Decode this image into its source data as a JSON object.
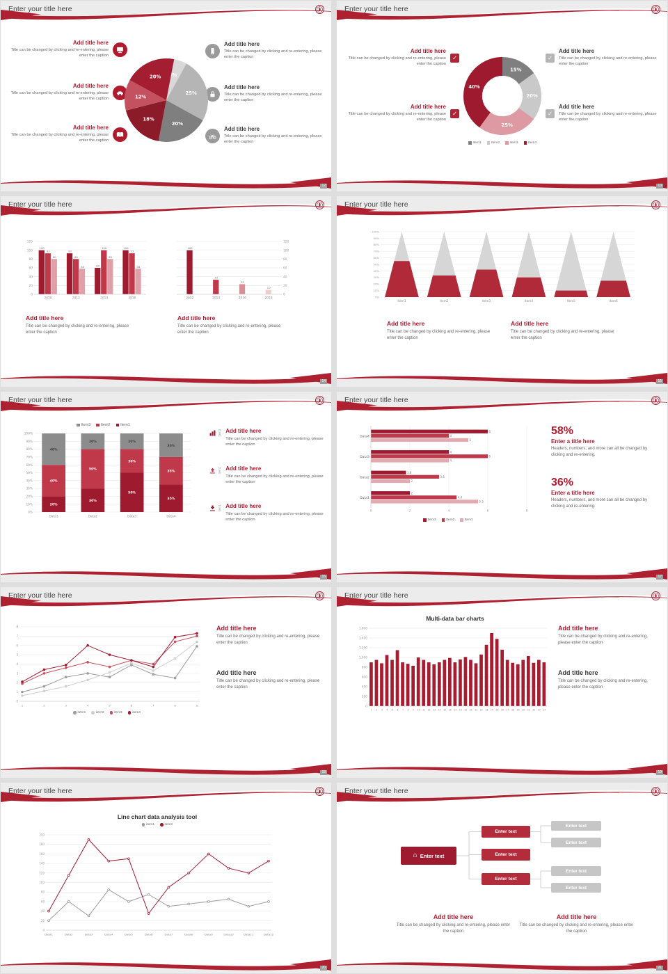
{
  "common": {
    "slide_title": "Enter your title here",
    "add_title": "Add title here",
    "caption": "Title can be changed by clicking and re-entering, please enter the caption",
    "enter_text": "Enter text",
    "brand_red": "#9e1b2f"
  },
  "slides": [
    {
      "page": "12",
      "chart": {
        "type": "pie",
        "slices": [
          {
            "label": "8%",
            "value": 8,
            "color": "#d9d9d9"
          },
          {
            "label": "25%",
            "value": 25,
            "color": "#b5b5b5"
          },
          {
            "label": "20%",
            "value": 20,
            "color": "#7f7f7f"
          },
          {
            "label": "18%",
            "value": 18,
            "color": "#8c1b29"
          },
          {
            "label": "12%",
            "value": 12,
            "color": "#c4515f"
          },
          {
            "label": "20%",
            "value": 20,
            "color": "#a41e32"
          }
        ]
      }
    },
    {
      "page": "13",
      "chart": {
        "type": "pie",
        "inner": true,
        "slices": [
          {
            "label": "15%",
            "value": 15,
            "color": "#7f7f7f"
          },
          {
            "label": "20%",
            "value": 20,
            "color": "#c9c9c9"
          },
          {
            "label": "25%",
            "value": 25,
            "color": "#dd9aa3"
          },
          {
            "label": "40%",
            "value": 40,
            "color": "#9e1b2f"
          }
        ]
      },
      "legend": [
        {
          "label": "Item1",
          "color": "#7f7f7f"
        },
        {
          "label": "Item2",
          "color": "#c9c9c9"
        },
        {
          "label": "Item3",
          "color": "#dd9aa3"
        },
        {
          "label": "Item4",
          "color": "#9e1b2f"
        }
      ]
    },
    {
      "page": "14",
      "chartL": {
        "type": "vbars",
        "axis": "left",
        "ymax": 120,
        "showValues": true,
        "yticks": [
          {
            "v": 0,
            "l": "0"
          },
          {
            "v": 20,
            "l": "20"
          },
          {
            "v": 40,
            "l": "40"
          },
          {
            "v": 60,
            "l": "60"
          },
          {
            "v": 80,
            "l": "80"
          },
          {
            "v": 100,
            "l": "100"
          },
          {
            "v": 120,
            "l": "120"
          }
        ],
        "categories": [
          "2010",
          "2012",
          "2014",
          "2016"
        ],
        "series": [
          {
            "name": "s1",
            "color": "#9e1b2f",
            "values": [
              100,
              93,
              60,
              100
            ]
          },
          {
            "name": "s2",
            "color": "#c0394b",
            "values": [
              93,
              80,
              100,
              93
            ]
          },
          {
            "name": "s3",
            "color": "#dfa0a8",
            "values": [
              80,
              58,
              80,
              58
            ]
          }
        ]
      },
      "chartR": {
        "type": "vbars",
        "axis": "right",
        "ymax": 120,
        "showValues": true,
        "yticks": [
          {
            "v": 0,
            "l": "0"
          },
          {
            "v": 20,
            "l": "20"
          },
          {
            "v": 40,
            "l": "40"
          },
          {
            "v": 60,
            "l": "60"
          },
          {
            "v": 80,
            "l": "80"
          },
          {
            "v": 100,
            "l": "100"
          },
          {
            "v": 120,
            "l": "120"
          }
        ],
        "categories": [
          "2012",
          "2014",
          "2016",
          "2018"
        ],
        "series": [
          {
            "name": "s1",
            "color": "#9e1b2f",
            "colors": [
              "#9e1b2f",
              "#c0394b",
              "#d98f98",
              "#eccdd0"
            ],
            "values": [
              100,
              33,
              23,
              10
            ]
          }
        ]
      }
    },
    {
      "page": "15",
      "chart": {
        "type": "cones",
        "red": "#b02a3a",
        "yticks": [
          {
            "v": 0,
            "l": "0%"
          },
          {
            "v": 10,
            "l": "10%"
          },
          {
            "v": 20,
            "l": "20%"
          },
          {
            "v": 30,
            "l": "30%"
          },
          {
            "v": 40,
            "l": "40%"
          },
          {
            "v": 50,
            "l": "50%"
          },
          {
            "v": 60,
            "l": "60%"
          },
          {
            "v": 70,
            "l": "70%"
          },
          {
            "v": 80,
            "l": "80%"
          },
          {
            "v": 90,
            "l": "90%"
          },
          {
            "v": 100,
            "l": "100%"
          }
        ],
        "items": [
          {
            "label": "Item1",
            "value": 55
          },
          {
            "label": "Item2",
            "value": 33
          },
          {
            "label": "Item3",
            "value": 42
          },
          {
            "label": "Item4",
            "value": 30
          },
          {
            "label": "Item5",
            "value": 10
          },
          {
            "label": "Item6",
            "value": 25
          }
        ]
      }
    },
    {
      "page": "16",
      "legend": [
        {
          "label": "Item3",
          "color": "#8c8c8c"
        },
        {
          "label": "Item2",
          "color": "#c0394b"
        },
        {
          "label": "Item1",
          "color": "#9e1b2f"
        }
      ],
      "chart": {
        "type": "stacked",
        "yticks": [
          {
            "v": 0,
            "l": "0%"
          },
          {
            "v": 10,
            "l": "10%"
          },
          {
            "v": 20,
            "l": "20%"
          },
          {
            "v": 30,
            "l": "30%"
          },
          {
            "v": 40,
            "l": "40%"
          },
          {
            "v": 50,
            "l": "50%"
          },
          {
            "v": 60,
            "l": "60%"
          },
          {
            "v": 70,
            "l": "70%"
          },
          {
            "v": 80,
            "l": "80%"
          },
          {
            "v": 90,
            "l": "90%"
          },
          {
            "v": 100,
            "l": "100%"
          }
        ],
        "categories": [
          "Data1",
          "Data2",
          "Data3",
          "Data4"
        ],
        "series": [
          {
            "name": "Item1",
            "color": "#9e1b2f",
            "values": [
              20,
              30,
              50,
              35
            ]
          },
          {
            "name": "Item2",
            "color": "#c0394b",
            "values": [
              40,
              50,
              30,
              35
            ]
          },
          {
            "name": "Item3",
            "color": "#8c8c8c",
            "txt": "#3f3f3f",
            "values": [
              40,
              20,
              20,
              30
            ]
          }
        ]
      },
      "rows": [
        {
          "tag": "Item3",
          "icon": "bar-chart-icon"
        },
        {
          "tag": "Item2",
          "icon": "upload-icon"
        },
        {
          "tag": "Item1",
          "icon": "download-icon"
        }
      ]
    },
    {
      "page": "17",
      "chart": {
        "type": "hbars",
        "xmax": 8,
        "xticks": [
          {
            "v": 0,
            "l": "0"
          },
          {
            "v": 2,
            "l": "2"
          },
          {
            "v": 4,
            "l": "4"
          },
          {
            "v": 6,
            "l": "6"
          },
          {
            "v": 8,
            "l": "8"
          }
        ],
        "categories": [
          "Data4",
          "Data3",
          "Data2",
          "Data1"
        ],
        "series": [
          {
            "name": "Item3",
            "color": "#9e1b2f",
            "values": [
              6,
              4,
              1.8,
              2
            ]
          },
          {
            "name": "Item2",
            "color": "#c0394b",
            "values": [
              4,
              6,
              3.5,
              4.4
            ]
          },
          {
            "name": "Item1",
            "color": "#e3aab0",
            "values": [
              5,
              4,
              2,
              5.5
            ]
          }
        ]
      },
      "legend": [
        {
          "label": "Item3",
          "color": "#9e1b2f"
        },
        {
          "label": "Item2",
          "color": "#c0394b"
        },
        {
          "label": "Item1",
          "color": "#e3aab0"
        }
      ],
      "stats": [
        {
          "value": "58%",
          "title": "Enter a title here",
          "caption": "Headers, numbers, and more can all be changed by clicking and re-entering."
        },
        {
          "value": "36%",
          "title": "Enter a title here",
          "caption": "Headers, numbers, and more can all be changed by clicking and re-entering."
        }
      ]
    },
    {
      "page": "18",
      "chart": {
        "type": "line",
        "ymax": 8,
        "yticks": [
          {
            "v": 0,
            "l": "0"
          },
          {
            "v": 1,
            "l": "1"
          },
          {
            "v": 2,
            "l": "2"
          },
          {
            "v": 3,
            "l": "3"
          },
          {
            "v": 4,
            "l": "4"
          },
          {
            "v": 5,
            "l": "5"
          },
          {
            "v": 6,
            "l": "6"
          },
          {
            "v": 7,
            "l": "7"
          },
          {
            "v": 8,
            "l": "8"
          }
        ],
        "x": [
          "1",
          "2",
          "3",
          "4",
          "5",
          "6",
          "7",
          "8",
          "9"
        ],
        "series": [
          {
            "name": "item1",
            "color": "#9c9c9c",
            "values": [
              1.0,
              1.6,
              2.6,
              3.0,
              2.6,
              3.9,
              2.9,
              2.5,
              5.9
            ]
          },
          {
            "name": "item2",
            "color": "#cfcfcf",
            "values": [
              0.6,
              1.1,
              1.6,
              2.3,
              3.1,
              4.1,
              3.3,
              4.6,
              6.4
            ]
          },
          {
            "name": "item3",
            "color": "#c4505e",
            "values": [
              1.9,
              3.0,
              3.6,
              4.2,
              3.7,
              4.4,
              4.0,
              6.4,
              7.0
            ]
          },
          {
            "name": "item4",
            "color": "#9e1b2f",
            "values": [
              2.1,
              3.4,
              3.9,
              6.0,
              5.0,
              4.4,
              3.7,
              6.9,
              7.3
            ]
          }
        ]
      },
      "legend": [
        {
          "label": "item1",
          "color": "#9c9c9c"
        },
        {
          "label": "item2",
          "color": "#cfcfcf"
        },
        {
          "label": "item3",
          "color": "#c4505e"
        },
        {
          "label": "item4",
          "color": "#9e1b2f"
        }
      ]
    },
    {
      "page": "19",
      "chart_title": "Multi-data bar charts",
      "chart": {
        "type": "vbars",
        "axis": "left",
        "ymax": 1600,
        "showValues": false,
        "catFont": 3.1,
        "yticks": [
          {
            "v": 0,
            "l": "0"
          },
          {
            "v": 200,
            "l": "200"
          },
          {
            "v": 400,
            "l": "400"
          },
          {
            "v": 600,
            "l": "600"
          },
          {
            "v": 800,
            "l": "800"
          },
          {
            "v": 1000,
            "l": "1,000"
          },
          {
            "v": 1200,
            "l": "1,200"
          },
          {
            "v": 1400,
            "l": "1,400"
          },
          {
            "v": 1600,
            "l": "1,600"
          }
        ],
        "categories": [
          "1",
          "2",
          "3",
          "4",
          "5",
          "6",
          "7",
          "8",
          "9",
          "10",
          "11",
          "12",
          "13",
          "14",
          "15",
          "16",
          "17",
          "18",
          "19",
          "20",
          "21",
          "22",
          "23",
          "24",
          "25",
          "26",
          "27",
          "28",
          "29",
          "30",
          "31",
          "32",
          "33",
          "34"
        ],
        "series": [
          {
            "name": "data",
            "color": "#a61c30",
            "values": [
              900,
              950,
              880,
              1050,
              950,
              1150,
              900,
              870,
              830,
              1000,
              950,
              900,
              860,
              900,
              950,
              990,
              900,
              960,
              1010,
              950,
              880,
              1060,
              1260,
              1500,
              1380,
              1160,
              950,
              890,
              860,
              950,
              1030,
              890,
              950,
              900
            ]
          }
        ]
      }
    },
    {
      "page": "20",
      "chart_title": "Line chart data analysis tool",
      "legend": [
        {
          "label": "item1",
          "color": "#9c9c9c"
        },
        {
          "label": "item2",
          "color": "#9e1b2f"
        }
      ],
      "chart": {
        "type": "line",
        "ymax": 200,
        "yticks": [
          {
            "v": 0,
            "l": "0"
          },
          {
            "v": 20,
            "l": "20"
          },
          {
            "v": 40,
            "l": "40"
          },
          {
            "v": 60,
            "l": "60"
          },
          {
            "v": 80,
            "l": "80"
          },
          {
            "v": 100,
            "l": "100"
          },
          {
            "v": 120,
            "l": "120"
          },
          {
            "v": 140,
            "l": "140"
          },
          {
            "v": 160,
            "l": "160"
          },
          {
            "v": 180,
            "l": "180"
          },
          {
            "v": 200,
            "l": "200"
          }
        ],
        "x": [
          "Data1",
          "Data2",
          "Data3",
          "Data4",
          "Data5",
          "Data6",
          "Data7",
          "Data8",
          "Data9",
          "Data10",
          "Data11",
          "Data12"
        ],
        "series": [
          {
            "name": "item1",
            "color": "#9c9c9c",
            "marker": "open",
            "values": [
              20,
              60,
              30,
              85,
              60,
              75,
              50,
              55,
              60,
              65,
              50,
              60
            ]
          },
          {
            "name": "item2",
            "color": "#9e1b2f",
            "marker": "open",
            "values": [
              40,
              115,
              190,
              145,
              150,
              35,
              90,
              120,
              160,
              130,
              120,
              145
            ]
          }
        ]
      }
    },
    {
      "page": "21"
    }
  ]
}
